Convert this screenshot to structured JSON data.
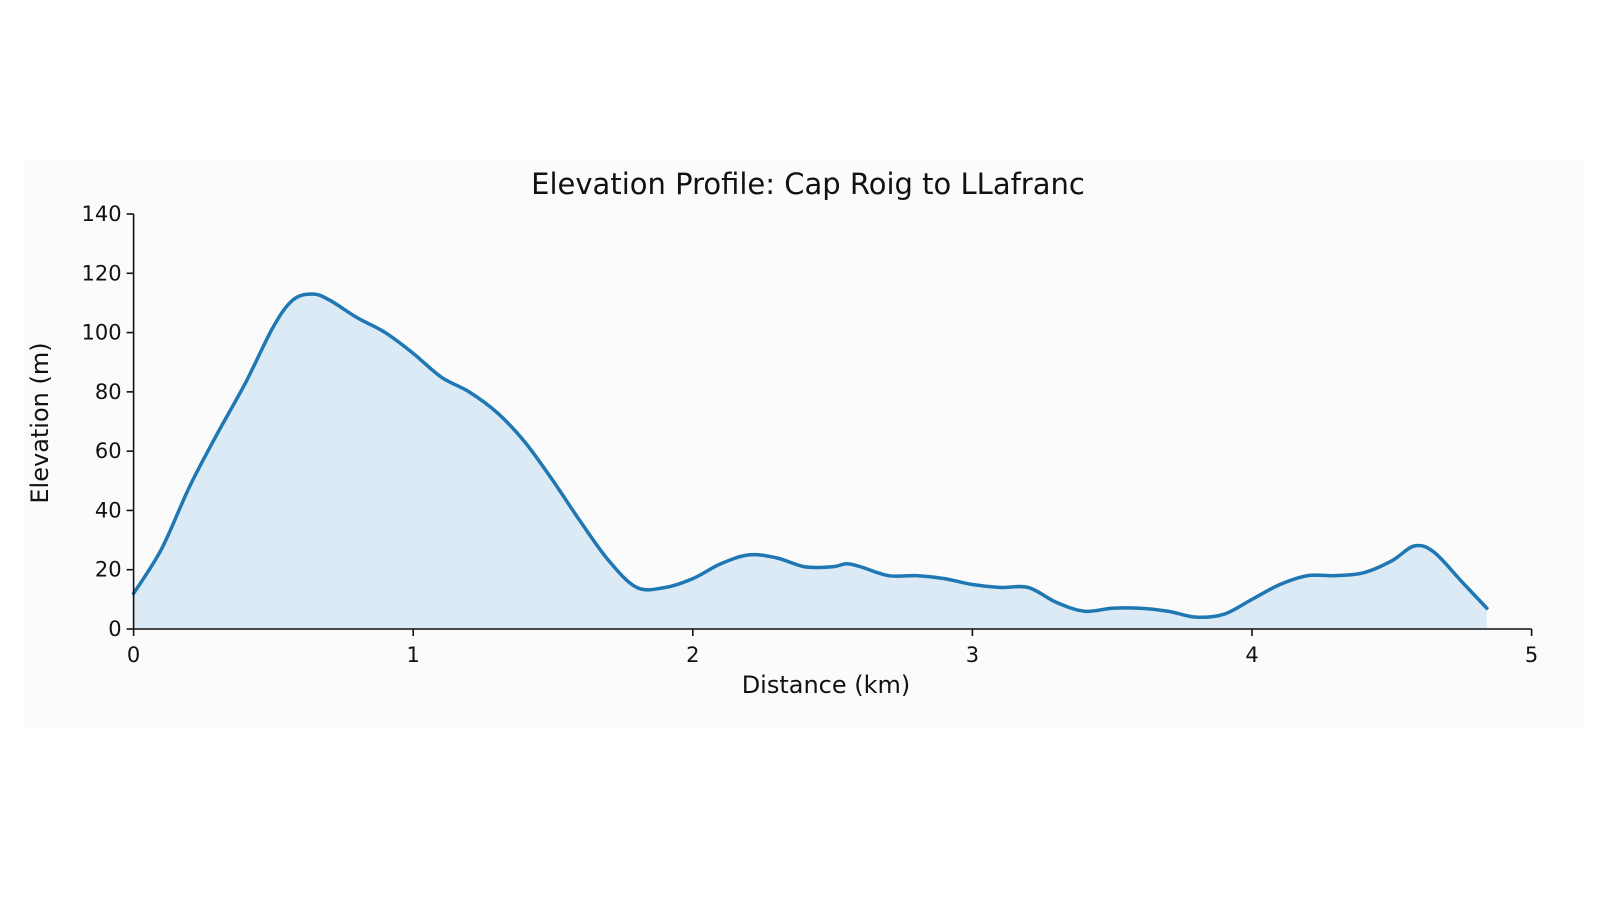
{
  "chart_data": {
    "type": "area",
    "title": "Elevation Profile: Cap Roig to LLafranc",
    "xlabel": "Distance (km)",
    "ylabel": "Elevation (m)",
    "xlim": [
      0,
      5
    ],
    "ylim": [
      0,
      140
    ],
    "xticks": [
      "0",
      "1",
      "2",
      "3",
      "4",
      "5"
    ],
    "yticks": [
      "0",
      "20",
      "40",
      "60",
      "80",
      "100",
      "120",
      "140"
    ],
    "grid": false,
    "legend": "none",
    "colors": {
      "line": "#1f77b4",
      "fill": "#dbeaf5",
      "axis": "#111111"
    },
    "series": [
      {
        "x": [
          0,
          0.1,
          0.2,
          0.3,
          0.4,
          0.5,
          0.57,
          0.64,
          0.7,
          0.8,
          0.9,
          1.0,
          1.1,
          1.2,
          1.3,
          1.4,
          1.5,
          1.6,
          1.7,
          1.8,
          1.9,
          2.0,
          2.1,
          2.2,
          2.3,
          2.4,
          2.5,
          2.55,
          2.6,
          2.7,
          2.8,
          2.9,
          3.0,
          3.1,
          3.2,
          3.3,
          3.4,
          3.5,
          3.6,
          3.7,
          3.8,
          3.9,
          4.0,
          4.1,
          4.2,
          4.3,
          4.4,
          4.5,
          4.58,
          4.65,
          4.75,
          4.84
        ],
        "y": [
          12,
          27,
          48,
          66,
          83,
          102,
          111,
          113,
          111,
          105,
          100,
          93,
          85,
          80,
          73,
          63,
          50,
          36,
          23,
          14,
          14,
          17,
          22,
          25,
          24,
          21,
          21,
          22,
          21,
          18,
          18,
          17,
          15,
          14,
          14,
          9,
          6,
          7,
          7,
          6,
          4,
          5,
          10,
          15,
          18,
          18,
          19,
          23,
          28,
          26,
          16,
          7
        ]
      }
    ]
  }
}
